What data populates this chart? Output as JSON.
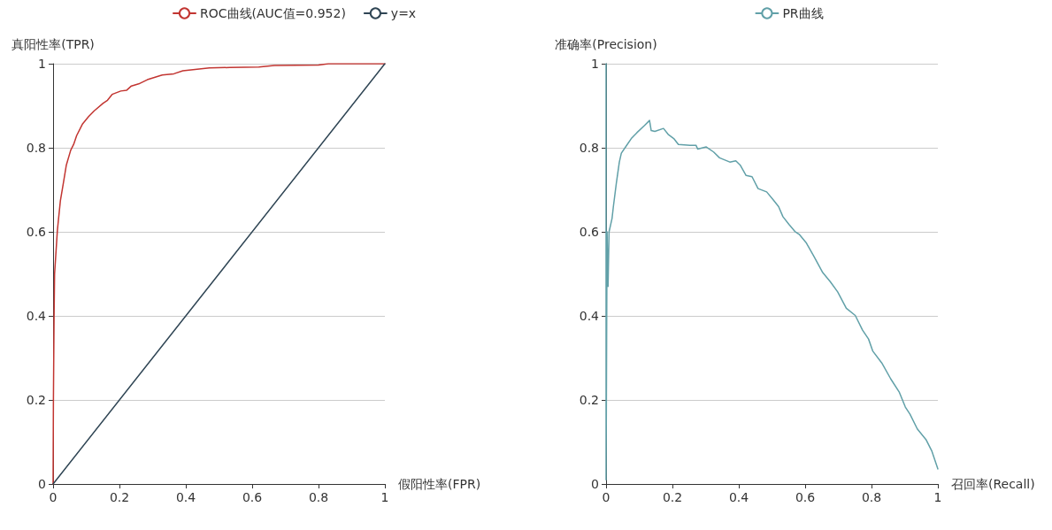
{
  "chart_data": [
    {
      "type": "line",
      "legend": "top",
      "marker": "none",
      "grid": "y",
      "xlabel": "假阳性率(FPR)",
      "ylabel": "真阳性率(TPR)",
      "xlim": [
        0,
        1
      ],
      "ylim": [
        0,
        1
      ],
      "xticks": [
        0,
        0.2,
        0.4,
        0.6,
        0.8,
        1
      ],
      "yticks": [
        0,
        0.2,
        0.4,
        0.6,
        0.8,
        1
      ],
      "series": [
        {
          "name": "ROC曲线(AUC值=0.952)",
          "color": "#c23531",
          "x": [
            0,
            0.001,
            0.003,
            0.0045,
            0.013,
            0.022,
            0.031,
            0.04,
            0.053,
            0.062,
            0.071,
            0.089,
            0.107,
            0.124,
            0.151,
            0.164,
            0.178,
            0.204,
            0.222,
            0.236,
            0.258,
            0.284,
            0.329,
            0.364,
            0.391,
            0.471,
            0.533,
            0.62,
            0.667,
            0.8,
            0.83,
            1
          ],
          "values": [
            0,
            0.2,
            0.4,
            0.5,
            0.604,
            0.674,
            0.716,
            0.759,
            0.794,
            0.808,
            0.829,
            0.857,
            0.874,
            0.888,
            0.906,
            0.913,
            0.927,
            0.935,
            0.937,
            0.947,
            0.952,
            0.962,
            0.973,
            0.976,
            0.983,
            0.99,
            0.991,
            0.992,
            0.996,
            0.997,
            1,
            1
          ]
        },
        {
          "name": "y=x",
          "color": "#2f4554",
          "x": [
            0,
            1
          ],
          "values": [
            0,
            1
          ]
        }
      ]
    },
    {
      "type": "line",
      "legend": "top",
      "marker": "none",
      "grid": "y",
      "xlabel": "召回率(Recall)",
      "ylabel": "准确率(Precision)",
      "xlim": [
        0,
        1
      ],
      "ylim": [
        0,
        1
      ],
      "xticks": [
        0,
        0.2,
        0.4,
        0.6,
        0.8,
        1
      ],
      "yticks": [
        0,
        0.2,
        0.4,
        0.6,
        0.8,
        1
      ],
      "series": [
        {
          "name": "PR曲线",
          "color": "#61a0a8",
          "x": [
            0,
            0,
            0.003,
            0.006,
            0.009,
            0.018,
            0.022,
            0.031,
            0.04,
            0.046,
            0.058,
            0.076,
            0.093,
            0.116,
            0.131,
            0.136,
            0.147,
            0.173,
            0.187,
            0.204,
            0.218,
            0.253,
            0.271,
            0.276,
            0.302,
            0.324,
            0.342,
            0.373,
            0.391,
            0.404,
            0.422,
            0.44,
            0.458,
            0.484,
            0.502,
            0.52,
            0.533,
            0.551,
            0.569,
            0.582,
            0.604,
            0.627,
            0.653,
            0.676,
            0.698,
            0.724,
            0.751,
            0.773,
            0.791,
            0.804,
            0.831,
            0.858,
            0.884,
            0.902,
            0.916,
            0.938,
            0.964,
            0.982,
            0.991,
            1
          ],
          "values": [
            1,
            0.01,
            0.6,
            0.47,
            0.6,
            0.632,
            0.66,
            0.716,
            0.766,
            0.787,
            0.801,
            0.822,
            0.836,
            0.853,
            0.865,
            0.841,
            0.839,
            0.846,
            0.832,
            0.822,
            0.808,
            0.806,
            0.806,
            0.797,
            0.802,
            0.79,
            0.776,
            0.766,
            0.769,
            0.759,
            0.734,
            0.731,
            0.703,
            0.695,
            0.678,
            0.66,
            0.636,
            0.618,
            0.601,
            0.594,
            0.573,
            0.541,
            0.503,
            0.481,
            0.457,
            0.418,
            0.401,
            0.366,
            0.345,
            0.316,
            0.288,
            0.25,
            0.218,
            0.183,
            0.166,
            0.131,
            0.106,
            0.078,
            0.057,
            0.036
          ]
        }
      ]
    }
  ]
}
